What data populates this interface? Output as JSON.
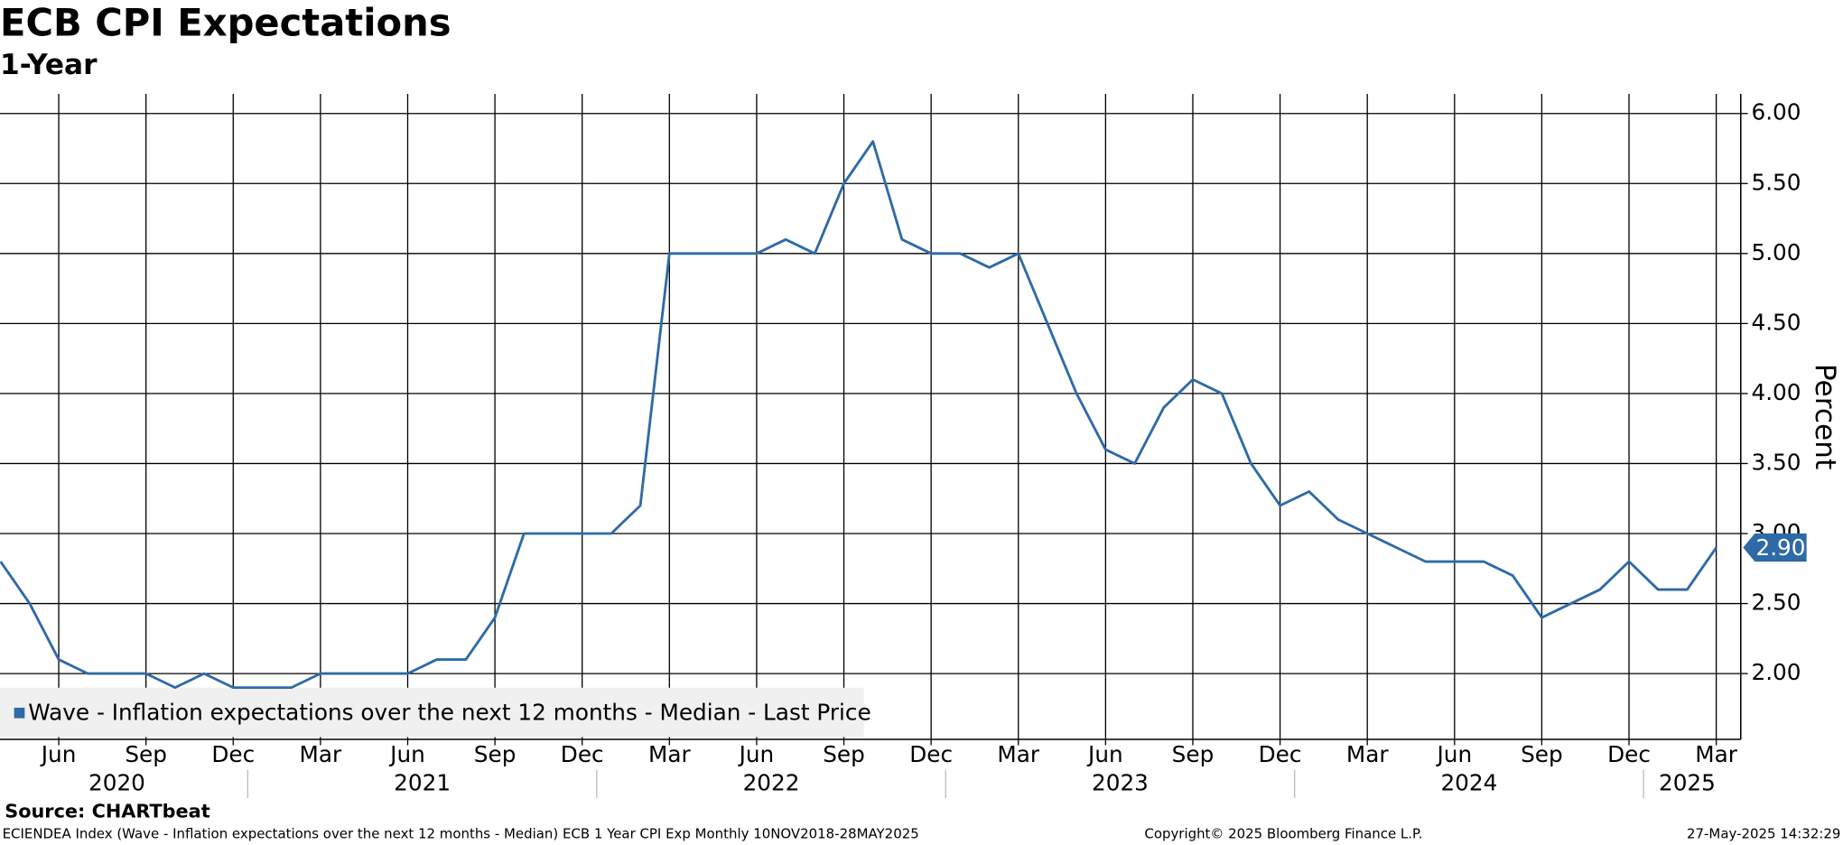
{
  "chart_data": {
    "type": "line",
    "title": "ECB CPI Expectations",
    "subtitle": "1-Year",
    "y_label": "Percent",
    "category_groups": [
      {
        "label": "2020",
        "categories": [
          null,
          null,
          "Jun",
          null,
          null,
          "Sep",
          null,
          null,
          "Dec"
        ]
      },
      {
        "label": "2021",
        "categories": [
          null,
          null,
          "Mar",
          null,
          null,
          "Jun",
          null,
          null,
          "Sep",
          null,
          null,
          "Dec"
        ]
      },
      {
        "label": "2022",
        "categories": [
          null,
          null,
          "Mar",
          null,
          null,
          "Jun",
          null,
          null,
          "Sep",
          null,
          null,
          "Dec"
        ]
      },
      {
        "label": "2023",
        "categories": [
          null,
          null,
          "Mar",
          null,
          null,
          "Jun",
          null,
          null,
          "Sep",
          null,
          null,
          "Dec"
        ]
      },
      {
        "label": "2024",
        "categories": [
          null,
          null,
          "Mar",
          null,
          null,
          "Jun",
          null,
          null,
          "Sep",
          null,
          null,
          "Dec"
        ]
      },
      {
        "label": "2025",
        "categories": [
          null,
          null,
          "Mar"
        ]
      }
    ],
    "series": [
      {
        "name": "Wave - Inflation expectations over the next 12 months - Median - Last Price",
        "color": "#2e6aa7",
        "values": [
          2.8,
          2.5,
          2.1,
          2.0,
          2.0,
          2.0,
          1.9,
          2.0,
          1.9,
          1.9,
          1.9,
          2.0,
          2.0,
          2.0,
          2.0,
          2.1,
          2.1,
          2.4,
          3.0,
          3.0,
          3.0,
          3.0,
          3.2,
          5.0,
          5.0,
          5.0,
          5.0,
          5.1,
          5.0,
          5.5,
          5.8,
          5.1,
          5.0,
          5.0,
          4.9,
          5.0,
          4.5,
          4.0,
          3.6,
          3.5,
          3.9,
          4.1,
          4.0,
          3.5,
          3.2,
          3.3,
          3.1,
          3.0,
          2.9,
          2.8,
          2.8,
          2.8,
          2.7,
          2.4,
          2.5,
          2.6,
          2.8,
          2.6,
          2.6,
          2.9
        ],
        "value_labels": [
          null,
          null,
          null,
          null,
          null,
          null,
          null,
          null,
          null,
          null,
          null,
          null,
          null,
          null,
          null,
          null,
          null,
          null,
          null,
          null,
          null,
          null,
          null,
          null,
          null,
          null,
          null,
          null,
          null,
          null,
          null,
          null,
          null,
          null,
          null,
          null,
          null,
          null,
          null,
          null,
          null,
          null,
          null,
          null,
          null,
          null,
          null,
          null,
          null,
          null,
          null,
          null,
          null,
          null,
          null,
          null,
          null,
          null,
          null,
          "2.90"
        ]
      }
    ],
    "ylim": [
      1.53,
      6.14
    ],
    "yticks": [
      {
        "value": 2,
        "label": "2.00"
      },
      {
        "value": 2.5,
        "label": "2.50"
      },
      {
        "value": 3,
        "label": "3.00"
      },
      {
        "value": 3.5,
        "label": "3.50"
      },
      {
        "value": 4,
        "label": "4.00"
      },
      {
        "value": 4.5,
        "label": "4.50"
      },
      {
        "value": 5,
        "label": "5.00"
      },
      {
        "value": 5.5,
        "label": "5.50"
      },
      {
        "value": 6,
        "label": "6.00"
      }
    ],
    "grid": true,
    "legend_position": "lower left",
    "source": "Source: CHARTbeat",
    "footer_left": "ECIENDEA Index (Wave - Inflation expectations over the next 12 months - Median) ECB 1 Year CPI Exp  Monthly 10NOV2018-28MAY2025",
    "footer_center": "Copyright© 2025 Bloomberg Finance L.P.",
    "footer_right": "27-May-2025 14:32:29"
  }
}
